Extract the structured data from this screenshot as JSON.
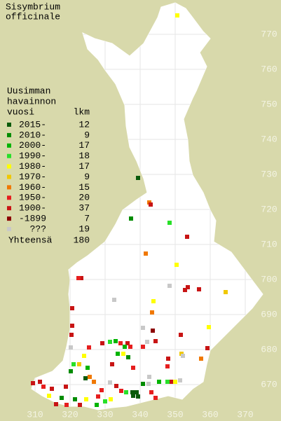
{
  "title": [
    "Sisymbrium",
    "officinale"
  ],
  "legend": {
    "heading": [
      "Uusimman",
      "havainnon",
      "vuosi"
    ],
    "count_heading": "lkm",
    "items": [
      {
        "label": "2015-",
        "color": "#0a5a0a",
        "count": 12
      },
      {
        "label": "2010-",
        "color": "#008c00",
        "count": 9
      },
      {
        "label": "2000-",
        "color": "#00b400",
        "count": 17
      },
      {
        "label": "1990-",
        "color": "#28e028",
        "count": 18
      },
      {
        "label": "1980-",
        "color": "#ffff00",
        "count": 17
      },
      {
        "label": "1970-",
        "color": "#f0c800",
        "count": 9
      },
      {
        "label": "1960-",
        "color": "#f07800",
        "count": 15
      },
      {
        "label": "1950-",
        "color": "#e61e1e",
        "count": 20
      },
      {
        "label": "1900-",
        "color": "#c81414",
        "count": 37
      },
      {
        "label": "-1899",
        "color": "#8c0000",
        "count": 7
      },
      {
        "label": "???",
        "color": "#c8c8c8",
        "count": 19
      }
    ],
    "total_label": "Yhteensä",
    "total": 180
  },
  "map": {
    "xlim": [
      300,
      380
    ],
    "ylim": [
      660,
      780
    ],
    "xticks": [
      310,
      320,
      330,
      340,
      350,
      360,
      370
    ],
    "yticks": [
      670,
      680,
      690,
      700,
      710,
      720,
      730,
      740,
      750,
      760,
      770
    ],
    "grid": true,
    "points": [
      [
        350.6,
        775.4,
        4
      ],
      [
        339.4,
        729,
        0
      ],
      [
        342.6,
        722,
        6
      ],
      [
        343,
        721.4,
        8
      ],
      [
        337.4,
        717.4,
        1
      ],
      [
        348.4,
        716.2,
        3
      ],
      [
        353.4,
        712.2,
        8
      ],
      [
        341.6,
        707.4,
        6
      ],
      [
        350.4,
        704.2,
        4
      ],
      [
        323.2,
        700.4,
        8
      ],
      [
        322.4,
        700.4,
        7
      ],
      [
        348.4,
        698.2,
        10
      ],
      [
        352.8,
        697,
        8
      ],
      [
        353.6,
        697.8,
        8
      ],
      [
        356.8,
        697.2,
        8
      ],
      [
        364.4,
        696.4,
        5
      ],
      [
        332.6,
        694.2,
        10
      ],
      [
        343.8,
        693.8,
        4
      ],
      [
        320.6,
        691.8,
        8
      ],
      [
        343.4,
        690.6,
        6
      ],
      [
        359.6,
        686.4,
        4
      ],
      [
        320.6,
        686.8,
        8
      ],
      [
        340.8,
        686.2,
        10
      ],
      [
        343.6,
        685.4,
        9
      ],
      [
        351.6,
        684.2,
        8
      ],
      [
        320.4,
        684.2,
        8
      ],
      [
        329.2,
        681.8,
        8
      ],
      [
        331.4,
        682.2,
        3
      ],
      [
        333,
        682.4,
        2
      ],
      [
        334.4,
        681.8,
        7
      ],
      [
        336.4,
        681.8,
        8
      ],
      [
        337.2,
        680.8,
        7
      ],
      [
        335.6,
        680.8,
        2
      ],
      [
        342,
        682.2,
        10
      ],
      [
        344.4,
        682.4,
        8
      ],
      [
        340.8,
        680.8,
        7
      ],
      [
        325.4,
        680.6,
        7
      ],
      [
        320.2,
        680.6,
        10
      ],
      [
        333.6,
        678.8,
        2
      ],
      [
        335.2,
        678.8,
        4
      ],
      [
        336.6,
        677.8,
        1
      ],
      [
        351.8,
        678.8,
        5
      ],
      [
        359.2,
        680.4,
        8
      ],
      [
        357.4,
        677.4,
        6
      ],
      [
        348,
        677.4,
        8
      ],
      [
        352.2,
        678.2,
        10
      ],
      [
        324,
        678.2,
        4
      ],
      [
        322.6,
        675.8,
        5
      ],
      [
        325,
        674.8,
        2
      ],
      [
        321,
        675.8,
        3
      ],
      [
        320.2,
        673.8,
        1
      ],
      [
        332,
        675.8,
        8
      ],
      [
        338,
        674.8,
        7
      ],
      [
        347.8,
        675.2,
        7
      ],
      [
        342.6,
        672.2,
        10
      ],
      [
        342.4,
        670.2,
        10
      ],
      [
        340.8,
        670.2,
        1
      ],
      [
        337.8,
        667.8,
        0
      ],
      [
        339,
        667.8,
        0
      ],
      [
        338,
        666.8,
        0
      ],
      [
        339.4,
        666.6,
        0
      ],
      [
        336,
        667.8,
        3
      ],
      [
        334.6,
        668.2,
        7
      ],
      [
        333.2,
        669.6,
        8
      ],
      [
        331.4,
        670.6,
        10
      ],
      [
        329,
        668.4,
        7
      ],
      [
        328,
        666.6,
        7
      ],
      [
        327.6,
        664.2,
        2
      ],
      [
        324.6,
        665.8,
        4
      ],
      [
        322.8,
        664.2,
        8
      ],
      [
        321.4,
        665.8,
        1
      ],
      [
        318.8,
        669.4,
        8
      ],
      [
        317.6,
        666.2,
        1
      ],
      [
        314,
        666.8,
        4
      ],
      [
        312.4,
        669.4,
        7
      ],
      [
        311.4,
        670.8,
        8
      ],
      [
        309.4,
        670.4,
        8
      ],
      [
        314.8,
        668.8,
        8
      ],
      [
        316,
        664.4,
        8
      ],
      [
        319,
        664.2,
        7
      ],
      [
        324.4,
        671.8,
        0
      ],
      [
        325.6,
        672.2,
        6
      ],
      [
        347.8,
        670.8,
        3
      ],
      [
        349,
        670.8,
        8
      ],
      [
        350,
        670.8,
        4
      ],
      [
        351.4,
        671.2,
        10
      ],
      [
        345.4,
        670.8,
        2
      ],
      [
        343.2,
        667.8,
        7
      ],
      [
        344.4,
        666.2,
        7
      ],
      [
        330,
        665.2,
        3
      ],
      [
        331.6,
        665.8,
        4
      ],
      [
        326.8,
        670.8,
        6
      ]
    ]
  }
}
